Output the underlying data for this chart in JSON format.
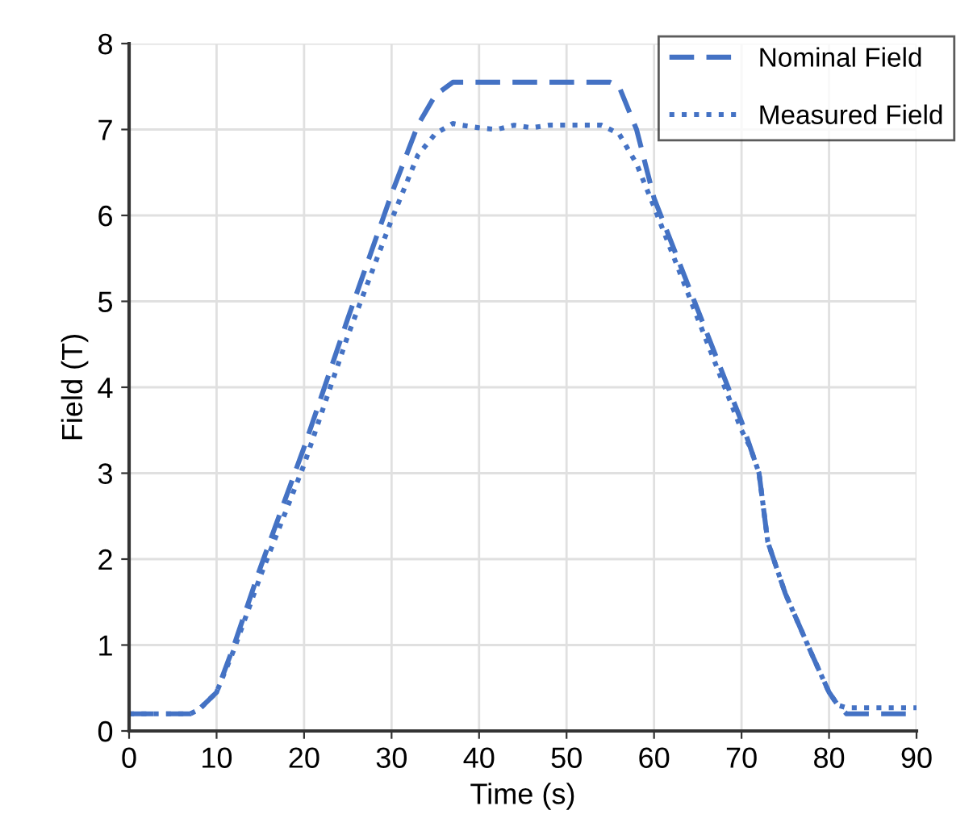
{
  "chart_data": {
    "type": "line",
    "xlabel": "Time (s)",
    "ylabel": "Field (T)",
    "xlim": [
      0,
      90
    ],
    "ylim": [
      0,
      8
    ],
    "xticks": [
      0,
      10,
      20,
      30,
      40,
      50,
      60,
      70,
      80,
      90
    ],
    "yticks": [
      0,
      1,
      2,
      3,
      4,
      5,
      6,
      7,
      8
    ],
    "grid": true,
    "legend": "top right",
    "marker": "none",
    "series": [
      {
        "name": "Nominal Field",
        "color": "#4472c4",
        "line_style": "dashed",
        "x": [
          0,
          7,
          8,
          10,
          12,
          15,
          20,
          25,
          30,
          33,
          35,
          37,
          55,
          56,
          58,
          60,
          65,
          70,
          71,
          72,
          73,
          75,
          78,
          80,
          81,
          82,
          90
        ],
        "values": [
          0.2,
          0.2,
          0.25,
          0.45,
          1.0,
          1.9,
          3.3,
          4.8,
          6.25,
          7.05,
          7.4,
          7.55,
          7.55,
          7.5,
          7.0,
          6.2,
          4.9,
          3.6,
          3.3,
          3.0,
          2.2,
          1.6,
          0.9,
          0.45,
          0.3,
          0.2,
          0.2
        ]
      },
      {
        "name": "Measured Field",
        "color": "#4472c4",
        "line_style": "dotted",
        "x": [
          0,
          7,
          8,
          10,
          12,
          15,
          20,
          25,
          30,
          33,
          35,
          37,
          38,
          40,
          42,
          44,
          46,
          48,
          52,
          54,
          56,
          58,
          60,
          65,
          70,
          71,
          72,
          73,
          75,
          78,
          80,
          81,
          82,
          90
        ],
        "values": [
          0.2,
          0.2,
          0.25,
          0.45,
          0.95,
          1.8,
          3.1,
          4.6,
          5.95,
          6.7,
          6.95,
          7.07,
          7.05,
          7.02,
          7.0,
          7.05,
          7.02,
          7.05,
          7.05,
          7.05,
          6.95,
          6.6,
          6.1,
          4.8,
          3.5,
          3.3,
          3.0,
          2.2,
          1.6,
          0.9,
          0.45,
          0.3,
          0.27,
          0.27
        ]
      }
    ]
  }
}
